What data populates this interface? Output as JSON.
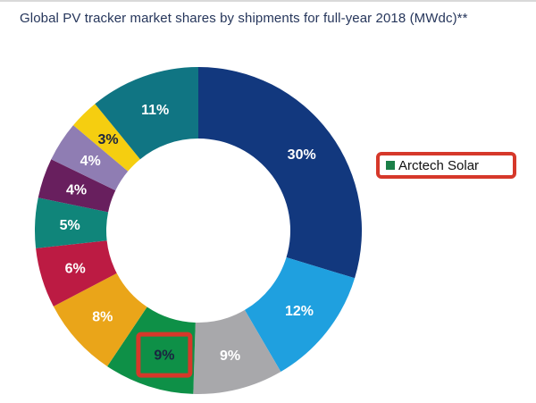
{
  "title": "Global PV tracker market shares by shipments for full-year 2018 (MWdc)**",
  "legend": {
    "label": "Arctech Solar",
    "marker_color": "#1b7f48",
    "text_color": "#111111"
  },
  "highlight": {
    "color": "#d6382a",
    "note": "red box drawn around the 9% green segment label and around the legend entry"
  },
  "chart_data": {
    "type": "pie",
    "subtype": "donut",
    "title": "Global PV tracker market shares by shipments for full-year 2018 (MWdc)**",
    "unit": "%",
    "start_angle_deg": 0,
    "clockwise": true,
    "legend_position": "right",
    "segments": [
      {
        "label": "30%",
        "value": 30,
        "color": "#12387e",
        "label_color": "#ffffff"
      },
      {
        "label": "12%",
        "value": 12,
        "color": "#1fa0df",
        "label_color": "#ffffff"
      },
      {
        "label": "9%",
        "value": 9,
        "color": "#a8a8ab",
        "label_color": "#ffffff"
      },
      {
        "label": "9%",
        "value": 9,
        "color": "#0e9047",
        "label_color": "#1a2440",
        "name": "Arctech Solar",
        "highlighted": true
      },
      {
        "label": "8%",
        "value": 8,
        "color": "#eaa519",
        "label_color": "#ffffff"
      },
      {
        "label": "6%",
        "value": 6,
        "color": "#bc1b43",
        "label_color": "#ffffff"
      },
      {
        "label": "5%",
        "value": 5,
        "color": "#10857a",
        "label_color": "#ffffff"
      },
      {
        "label": "4%",
        "value": 4,
        "color": "#681f5e",
        "label_color": "#ffffff"
      },
      {
        "label": "4%",
        "value": 4,
        "color": "#8f7db3",
        "label_color": "#ffffff"
      },
      {
        "label": "3%",
        "value": 3,
        "color": "#f5ce10",
        "label_color": "#1a2440"
      },
      {
        "label": "11%",
        "value": 11,
        "color": "#107583",
        "label_color": "#ffffff"
      }
    ]
  }
}
